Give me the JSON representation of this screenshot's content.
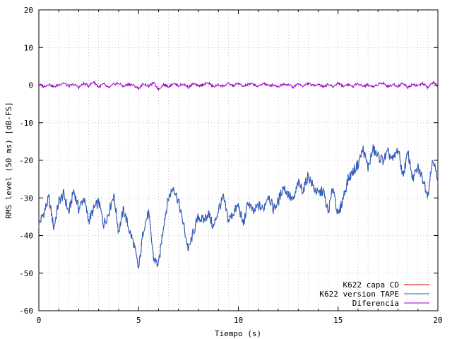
{
  "chart_data": {
    "type": "line",
    "title": "",
    "xlabel": "Tiempo (s)",
    "ylabel": "RMS level (50 ms) [dB-FS]",
    "xlim": [
      0,
      20
    ],
    "ylim": [
      -60,
      20
    ],
    "xticks": [
      0,
      5,
      10,
      15,
      20
    ],
    "yticks": [
      -60,
      -50,
      -40,
      -30,
      -20,
      -10,
      0,
      10,
      20
    ],
    "xtick_labels": [
      "0",
      "5",
      "10",
      "15",
      "20"
    ],
    "ytick_labels": [
      "-60",
      "-50",
      "-40",
      "-30",
      "-20",
      "-10",
      "0",
      "10",
      "20"
    ],
    "grid": true,
    "legend_position": "bottom-right",
    "series": [
      {
        "name": "K622 capa CD",
        "color": "#cc0000",
        "x": [
          0.0,
          0.25,
          0.5,
          0.75,
          1.0,
          1.25,
          1.5,
          1.75,
          2.0,
          2.25,
          2.5,
          2.75,
          3.0,
          3.25,
          3.5,
          3.75,
          4.0,
          4.25,
          4.5,
          4.75,
          5.0,
          5.25,
          5.5,
          5.75,
          6.0,
          6.25,
          6.5,
          6.75,
          7.0,
          7.25,
          7.5,
          7.75,
          8.0,
          8.25,
          8.5,
          8.75,
          9.0,
          9.25,
          9.5,
          9.75,
          10.0,
          10.25,
          10.5,
          10.75,
          11.0,
          11.25,
          11.5,
          11.75,
          12.0,
          12.25,
          12.5,
          12.75,
          13.0,
          13.25,
          13.5,
          13.75,
          14.0,
          14.25,
          14.5,
          14.75,
          15.0,
          15.25,
          15.5,
          15.75,
          16.0,
          16.25,
          16.5,
          16.75,
          17.0,
          17.25,
          17.5,
          17.75,
          18.0,
          18.25,
          18.5,
          18.75,
          19.0,
          19.25,
          19.5,
          19.75,
          20.0
        ],
        "values": [
          -37,
          -34,
          -30,
          -38,
          -31,
          -29,
          -34,
          -28,
          -33,
          -30,
          -36,
          -33,
          -31,
          -37,
          -34,
          -29,
          -39,
          -33,
          -38,
          -42,
          -49,
          -38,
          -34,
          -46,
          -48,
          -37,
          -30,
          -27,
          -31,
          -37,
          -44,
          -39,
          -35,
          -36,
          -34,
          -38,
          -33,
          -30,
          -36,
          -34,
          -32,
          -37,
          -31,
          -34,
          -32,
          -33,
          -29,
          -33,
          -31,
          -27,
          -29,
          -31,
          -26,
          -28,
          -24,
          -27,
          -29,
          -28,
          -34,
          -27,
          -35,
          -30,
          -25,
          -23,
          -21,
          -17,
          -22,
          -17,
          -19,
          -20,
          -18,
          -20,
          -17,
          -24,
          -18,
          -25,
          -22,
          -25,
          -29,
          -19,
          -26
        ]
      },
      {
        "name": "K622 version TAPE",
        "color": "#2266cc",
        "x": [
          0.0,
          0.25,
          0.5,
          0.75,
          1.0,
          1.25,
          1.5,
          1.75,
          2.0,
          2.25,
          2.5,
          2.75,
          3.0,
          3.25,
          3.5,
          3.75,
          4.0,
          4.25,
          4.5,
          4.75,
          5.0,
          5.25,
          5.5,
          5.75,
          6.0,
          6.25,
          6.5,
          6.75,
          7.0,
          7.25,
          7.5,
          7.75,
          8.0,
          8.25,
          8.5,
          8.75,
          9.0,
          9.25,
          9.5,
          9.75,
          10.0,
          10.25,
          10.5,
          10.75,
          11.0,
          11.25,
          11.5,
          11.75,
          12.0,
          12.25,
          12.5,
          12.75,
          13.0,
          13.25,
          13.5,
          13.75,
          14.0,
          14.25,
          14.5,
          14.75,
          15.0,
          15.25,
          15.5,
          15.75,
          16.0,
          16.25,
          16.5,
          16.75,
          17.0,
          17.25,
          17.5,
          17.75,
          18.0,
          18.25,
          18.5,
          18.75,
          19.0,
          19.25,
          19.5,
          19.75,
          20.0
        ],
        "values": [
          -37,
          -34,
          -30,
          -38,
          -31,
          -29,
          -34,
          -28,
          -33,
          -30,
          -36,
          -33,
          -31,
          -37,
          -34,
          -29,
          -39,
          -33,
          -38,
          -42,
          -49,
          -38,
          -34,
          -46,
          -48,
          -37,
          -30,
          -27,
          -31,
          -37,
          -44,
          -39,
          -35,
          -36,
          -34,
          -38,
          -33,
          -30,
          -36,
          -34,
          -32,
          -37,
          -31,
          -34,
          -32,
          -33,
          -29,
          -33,
          -31,
          -27,
          -29,
          -31,
          -26,
          -28,
          -24,
          -27,
          -29,
          -28,
          -34,
          -27,
          -35,
          -30,
          -25,
          -23,
          -21,
          -17,
          -22,
          -17,
          -19,
          -20,
          -18,
          -20,
          -17,
          -24,
          -18,
          -25,
          -22,
          -25,
          -29,
          -19,
          -26
        ]
      },
      {
        "name": "Diferencia",
        "color": "#9900cc",
        "x": [
          0.0,
          0.25,
          0.5,
          0.75,
          1.0,
          1.25,
          1.5,
          1.75,
          2.0,
          2.25,
          2.5,
          2.75,
          3.0,
          3.25,
          3.5,
          3.75,
          4.0,
          4.25,
          4.5,
          4.75,
          5.0,
          5.25,
          5.5,
          5.75,
          6.0,
          6.25,
          6.5,
          6.75,
          7.0,
          7.25,
          7.5,
          7.75,
          8.0,
          8.25,
          8.5,
          8.75,
          9.0,
          9.25,
          9.5,
          9.75,
          10.0,
          10.25,
          10.5,
          10.75,
          11.0,
          11.25,
          11.5,
          11.75,
          12.0,
          12.25,
          12.5,
          12.75,
          13.0,
          13.25,
          13.5,
          13.75,
          14.0,
          14.25,
          14.5,
          14.75,
          15.0,
          15.25,
          15.5,
          15.75,
          16.0,
          16.25,
          16.5,
          16.75,
          17.0,
          17.25,
          17.5,
          17.75,
          18.0,
          18.25,
          18.5,
          18.75,
          19.0,
          19.25,
          19.5,
          19.75,
          20.0
        ],
        "values": [
          0.2,
          -0.4,
          0.3,
          -0.5,
          0.1,
          0.6,
          -0.3,
          0.2,
          -0.6,
          0.4,
          -0.2,
          0.9,
          -0.5,
          0.3,
          -0.8,
          0.2,
          0.5,
          -0.4,
          0.3,
          -0.1,
          -0.9,
          0.4,
          -0.3,
          0.6,
          -1.1,
          0.2,
          -0.4,
          0.5,
          -0.2,
          0.3,
          -0.6,
          0.4,
          -0.3,
          0.2,
          0.6,
          -0.5,
          0.1,
          -0.3,
          0.4,
          -0.2,
          0.5,
          -0.4,
          0.2,
          0.3,
          -0.5,
          0.6,
          -0.2,
          0.1,
          -0.4,
          0.3,
          0.2,
          -0.6,
          0.4,
          -0.3,
          0.5,
          -0.2,
          0.3,
          -0.4,
          0.2,
          -0.5,
          0.6,
          -0.3,
          0.2,
          -0.4,
          0.5,
          -0.3,
          0.1,
          -0.5,
          0.3,
          0.6,
          -0.4,
          0.2,
          -0.3,
          0.5,
          -0.6,
          0.3,
          -0.2,
          0.4,
          -0.7,
          0.8,
          -0.3
        ]
      }
    ]
  }
}
